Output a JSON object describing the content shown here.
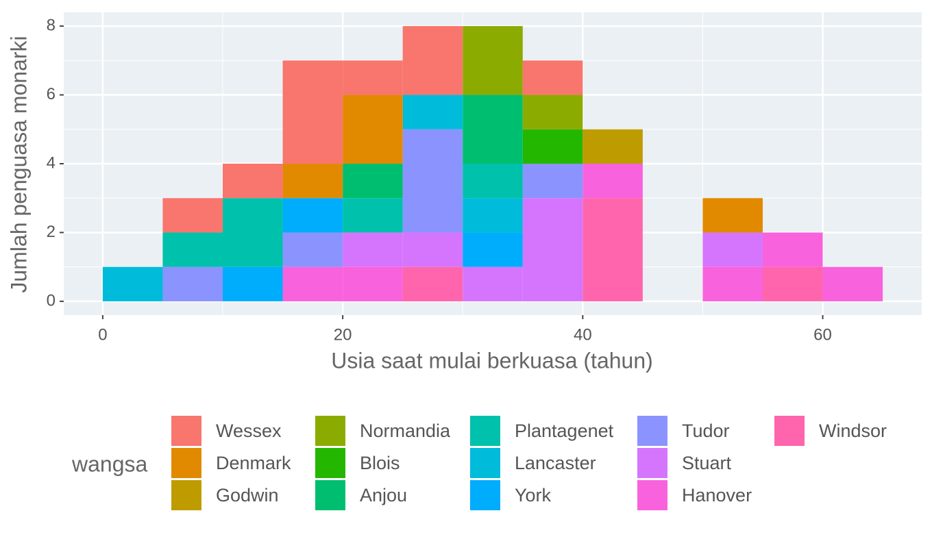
{
  "chart_data": {
    "type": "histogram",
    "stacked": true,
    "xlabel": "Usia saat mulai berkuasa (tahun)",
    "ylabel": "Jumlah penguasa monarki",
    "legend_title": "wangsa",
    "bins": [
      0,
      5,
      10,
      15,
      20,
      25,
      30,
      35,
      40,
      45,
      50,
      55,
      60,
      65
    ],
    "series": [
      {
        "name": "Wessex",
        "color": "#F8766D",
        "values": [
          0,
          1,
          1,
          3,
          1,
          2,
          0,
          1,
          0,
          0,
          0,
          0,
          0
        ]
      },
      {
        "name": "Denmark",
        "color": "#E18A00",
        "values": [
          0,
          0,
          0,
          1,
          2,
          0,
          0,
          0,
          0,
          0,
          1,
          0,
          0
        ]
      },
      {
        "name": "Godwin",
        "color": "#BE9C00",
        "values": [
          0,
          0,
          0,
          0,
          0,
          0,
          0,
          0,
          1,
          0,
          0,
          0,
          0
        ]
      },
      {
        "name": "Normandia",
        "color": "#8CAB00",
        "values": [
          0,
          0,
          0,
          0,
          0,
          0,
          2,
          1,
          0,
          0,
          0,
          0,
          0
        ]
      },
      {
        "name": "Blois",
        "color": "#24B700",
        "values": [
          0,
          0,
          0,
          0,
          0,
          0,
          0,
          1,
          0,
          0,
          0,
          0,
          0
        ]
      },
      {
        "name": "Anjou",
        "color": "#00BE70",
        "values": [
          0,
          0,
          0,
          0,
          1,
          0,
          2,
          0,
          0,
          0,
          0,
          0,
          0
        ]
      },
      {
        "name": "Plantagenet",
        "color": "#00C1AB",
        "values": [
          0,
          1,
          2,
          0,
          1,
          0,
          1,
          0,
          0,
          0,
          0,
          0,
          0
        ]
      },
      {
        "name": "Lancaster",
        "color": "#00BBDA",
        "values": [
          1,
          0,
          0,
          0,
          0,
          1,
          1,
          0,
          0,
          0,
          0,
          0,
          0
        ]
      },
      {
        "name": "York",
        "color": "#00ACFC",
        "values": [
          0,
          0,
          1,
          1,
          0,
          0,
          1,
          0,
          0,
          0,
          0,
          0,
          0
        ]
      },
      {
        "name": "Tudor",
        "color": "#8B93FF",
        "values": [
          0,
          1,
          0,
          1,
          0,
          3,
          0,
          1,
          0,
          0,
          0,
          0,
          0
        ]
      },
      {
        "name": "Stuart",
        "color": "#D575FE",
        "values": [
          0,
          0,
          0,
          0,
          1,
          1,
          1,
          3,
          0,
          0,
          1,
          0,
          0
        ]
      },
      {
        "name": "Hanover",
        "color": "#F962DD",
        "values": [
          0,
          0,
          0,
          1,
          1,
          0,
          0,
          0,
          1,
          0,
          1,
          1,
          1
        ]
      },
      {
        "name": "Windsor",
        "color": "#FF65AC",
        "values": [
          0,
          0,
          0,
          0,
          0,
          1,
          0,
          0,
          3,
          0,
          0,
          1,
          0
        ]
      }
    ],
    "xlim": [
      -3.25,
      68.25
    ],
    "xticks": [
      0,
      20,
      40,
      60
    ],
    "ylim": [
      -0.4,
      8.4
    ],
    "yticks": [
      0,
      2,
      4,
      6,
      8
    ],
    "grid": true,
    "legend_position": "bottom"
  }
}
